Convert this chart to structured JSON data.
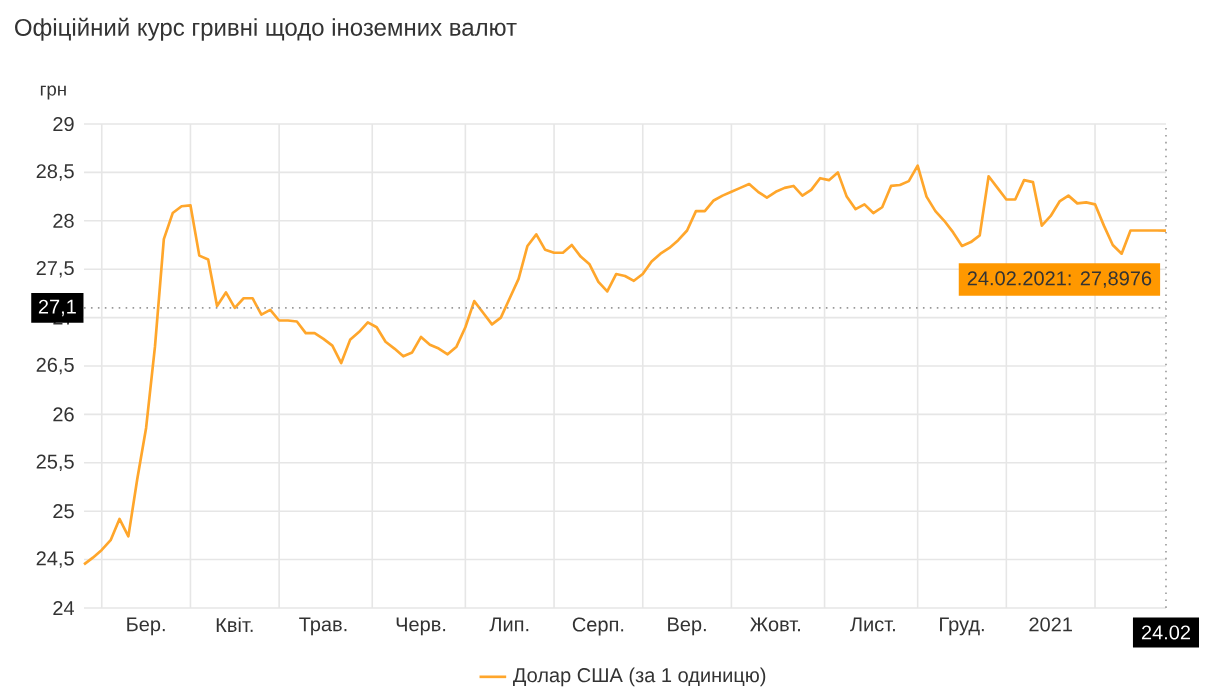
{
  "chart_data": {
    "type": "line",
    "title": "Офіційний курс гривні щодо іноземних валют",
    "ylabel": "грн",
    "categories": [
      null,
      null,
      null,
      null,
      null,
      null,
      null,
      "Бер.",
      null,
      null,
      null,
      null,
      null,
      null,
      null,
      null,
      null,
      "Квіт.",
      null,
      null,
      null,
      null,
      null,
      null,
      null,
      null,
      null,
      "Трав.",
      null,
      null,
      null,
      null,
      null,
      null,
      null,
      null,
      null,
      null,
      "Черв.",
      null,
      null,
      null,
      null,
      null,
      null,
      null,
      null,
      null,
      "Лип.",
      null,
      null,
      null,
      null,
      null,
      null,
      null,
      null,
      null,
      "Серп.",
      null,
      null,
      null,
      null,
      null,
      null,
      null,
      null,
      null,
      "Вер.",
      null,
      null,
      null,
      null,
      null,
      null,
      null,
      null,
      null,
      "Жовт.",
      null,
      null,
      null,
      null,
      null,
      null,
      null,
      null,
      null,
      null,
      "Лист.",
      null,
      null,
      null,
      null,
      null,
      null,
      null,
      null,
      null,
      "Груд.",
      null,
      null,
      null,
      null,
      null,
      null,
      null,
      null,
      null,
      "2021",
      null,
      null,
      null,
      null,
      null,
      null,
      null,
      null,
      null,
      null,
      null,
      null,
      "24.02"
    ],
    "series": [
      {
        "name": "Долар США (за 1 одиницю)",
        "color": "#ffa62b",
        "values": [
          24.45,
          24.52,
          24.6,
          24.7,
          24.92,
          24.74,
          25.33,
          25.86,
          26.7,
          27.81,
          28.08,
          28.15,
          28.16,
          27.64,
          27.6,
          27.12,
          27.26,
          27.1,
          27.2,
          27.2,
          27.03,
          27.08,
          26.97,
          26.97,
          26.96,
          26.84,
          26.84,
          26.78,
          26.71,
          26.53,
          26.77,
          26.85,
          26.95,
          26.9,
          26.75,
          26.68,
          26.6,
          26.64,
          26.8,
          26.72,
          26.68,
          26.62,
          26.7,
          26.9,
          27.17,
          27.05,
          26.93,
          27.0,
          27.2,
          27.4,
          27.74,
          27.86,
          27.7,
          27.67,
          27.67,
          27.75,
          27.63,
          27.55,
          27.37,
          27.27,
          27.45,
          27.43,
          27.38,
          27.45,
          27.58,
          27.66,
          27.72,
          27.8,
          27.9,
          28.1,
          28.1,
          28.21,
          28.26,
          28.3,
          28.34,
          28.38,
          28.3,
          28.24,
          28.3,
          28.34,
          28.36,
          28.26,
          28.32,
          28.44,
          28.42,
          28.5,
          28.25,
          28.12,
          28.17,
          28.08,
          28.14,
          28.36,
          28.37,
          28.41,
          28.57,
          28.25,
          28.1,
          28.0,
          27.88,
          27.74,
          27.78,
          27.85,
          28.46,
          28.34,
          28.22,
          28.22,
          28.42,
          28.4,
          27.95,
          28.05,
          28.2,
          28.26,
          28.18,
          28.19,
          28.17,
          27.95,
          27.75,
          27.66,
          27.9,
          27.9,
          27.9,
          27.9,
          27.8976
        ]
      }
    ],
    "ylim": [
      24,
      29
    ],
    "yticks": [
      24,
      {
        "value": 24.5,
        "label": "24,5"
      },
      25,
      {
        "value": 25.5,
        "label": "25,5"
      },
      26,
      {
        "value": 26.5,
        "label": "26,5"
      },
      27,
      {
        "value": 27.5,
        "label": "27,5"
      },
      28,
      {
        "value": 28.5,
        "label": "28,5"
      },
      29
    ],
    "ref_lines": [
      {
        "axis": "y",
        "value": 27.1,
        "label": "27,1",
        "color": "#999999",
        "line_style": "dotted"
      },
      {
        "axis": "x",
        "value": "24.02",
        "color": "#999999",
        "line_style": "dotted"
      }
    ],
    "annotations": [
      {
        "text": "24.02.2021: 27,8976",
        "x": "24.02",
        "y": 27.8976
      }
    ],
    "grid": true,
    "legend": "bottom"
  }
}
